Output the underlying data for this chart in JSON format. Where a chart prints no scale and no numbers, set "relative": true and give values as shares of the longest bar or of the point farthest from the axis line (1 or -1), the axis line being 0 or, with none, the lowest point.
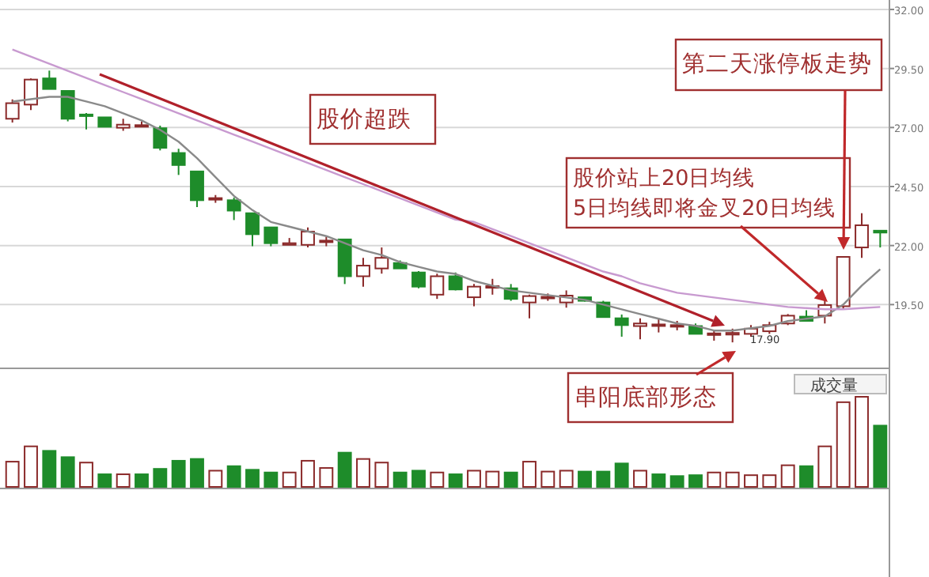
{
  "chart_data": [
    {
      "type": "candlestick",
      "categories": [
        null,
        null,
        null,
        null,
        null,
        null,
        null,
        null,
        null,
        null,
        null,
        null,
        null,
        null,
        null,
        null,
        null,
        null,
        null,
        null,
        null,
        null,
        null,
        null,
        null,
        null,
        null,
        null,
        null,
        null,
        null,
        null,
        null,
        null,
        null,
        null,
        null,
        null,
        null,
        null,
        null,
        null,
        null,
        null,
        null,
        null,
        null,
        null
      ],
      "ohlc": [
        [
          27.37,
          28.19,
          27.21,
          28.03
        ],
        [
          27.97,
          29.08,
          27.74,
          29.03
        ],
        [
          29.08,
          29.41,
          28.63,
          28.63
        ],
        [
          28.55,
          28.55,
          27.26,
          27.37
        ],
        [
          27.55,
          27.61,
          26.92,
          27.5
        ],
        [
          27.43,
          27.43,
          27.03,
          27.03
        ],
        [
          26.99,
          27.37,
          26.86,
          27.12
        ],
        [
          27.08,
          27.26,
          27.03,
          27.1
        ],
        [
          26.97,
          27.08,
          26.03,
          26.14
        ],
        [
          25.92,
          26.1,
          24.99,
          25.41
        ],
        [
          25.14,
          25.14,
          23.63,
          23.92
        ],
        [
          23.97,
          24.14,
          23.81,
          24.01
        ],
        [
          23.92,
          24.03,
          23.08,
          23.48
        ],
        [
          23.37,
          23.37,
          21.97,
          22.48
        ],
        [
          22.77,
          22.77,
          21.97,
          22.1
        ],
        [
          22.03,
          22.32,
          22.03,
          22.1
        ],
        [
          22.03,
          22.77,
          21.92,
          22.59
        ],
        [
          22.17,
          22.37,
          21.97,
          22.21
        ],
        [
          22.26,
          22.26,
          20.37,
          20.7
        ],
        [
          20.7,
          21.48,
          20.26,
          21.15
        ],
        [
          21.03,
          21.92,
          20.81,
          21.48
        ],
        [
          21.26,
          21.37,
          21.03,
          21.03
        ],
        [
          20.86,
          20.92,
          20.19,
          20.26
        ],
        [
          19.92,
          20.81,
          19.74,
          20.7
        ],
        [
          20.7,
          20.86,
          20.1,
          20.14
        ],
        [
          19.81,
          20.37,
          19.43,
          20.26
        ],
        [
          20.23,
          20.59,
          19.92,
          20.28
        ],
        [
          20.19,
          20.37,
          19.66,
          19.74
        ],
        [
          19.59,
          19.92,
          18.92,
          19.86
        ],
        [
          19.79,
          19.97,
          19.66,
          19.83
        ],
        [
          19.59,
          20.1,
          19.37,
          19.88
        ],
        [
          19.81,
          19.83,
          19.63,
          19.66
        ],
        [
          19.59,
          19.66,
          18.97,
          18.97
        ],
        [
          18.92,
          19.08,
          18.14,
          18.63
        ],
        [
          18.59,
          18.92,
          18.03,
          18.7
        ],
        [
          18.61,
          18.92,
          18.32,
          18.66
        ],
        [
          18.59,
          18.81,
          18.41,
          18.63
        ],
        [
          18.59,
          18.7,
          18.26,
          18.26
        ],
        [
          18.23,
          18.41,
          17.97,
          18.28
        ],
        [
          18.23,
          18.48,
          17.9,
          18.3
        ],
        [
          18.26,
          18.63,
          18.14,
          18.48
        ],
        [
          18.37,
          18.77,
          18.26,
          18.63
        ],
        [
          18.7,
          19.1,
          18.63,
          19.03
        ],
        [
          18.99,
          19.26,
          18.81,
          18.81
        ],
        [
          19.03,
          19.81,
          18.7,
          19.48
        ],
        [
          19.43,
          21.52,
          19.3,
          21.52
        ],
        [
          21.92,
          23.37,
          21.48,
          22.86
        ],
        [
          22.63,
          22.63,
          21.92,
          22.55
        ]
      ],
      "colors": [
        "#8b2a2a",
        "#8b2a2a",
        "#1e8c2a",
        "#1e8c2a",
        "#1e8c2a",
        "#1e8c2a",
        "#8b2a2a",
        "#8b2a2a",
        "#1e8c2a",
        "#1e8c2a",
        "#1e8c2a",
        "#8b2a2a",
        "#1e8c2a",
        "#1e8c2a",
        "#1e8c2a",
        "#8b2a2a",
        "#8b2a2a",
        "#8b2a2a",
        "#1e8c2a",
        "#8b2a2a",
        "#8b2a2a",
        "#1e8c2a",
        "#1e8c2a",
        "#8b2a2a",
        "#1e8c2a",
        "#8b2a2a",
        "#8b2a2a",
        "#1e8c2a",
        "#8b2a2a",
        "#8b2a2a",
        "#8b2a2a",
        "#1e8c2a",
        "#1e8c2a",
        "#1e8c2a",
        "#8b2a2a",
        "#8b2a2a",
        "#8b2a2a",
        "#1e8c2a",
        "#8b2a2a",
        "#8b2a2a",
        "#8b2a2a",
        "#8b2a2a",
        "#8b2a2a",
        "#1e8c2a",
        "#8b2a2a",
        "#8b2a2a",
        "#8b2a2a",
        "#1e8c2a"
      ],
      "series": [
        {
          "type": "line",
          "color": "#8a8a8a",
          "values": [
            28.1,
            28.2,
            28.3,
            28.3,
            28.1,
            27.9,
            27.6,
            27.3,
            26.9,
            26.4,
            25.7,
            24.9,
            24.1,
            23.5,
            23.0,
            22.8,
            22.6,
            22.4,
            22.1,
            21.8,
            21.6,
            21.3,
            21.1,
            20.9,
            20.8,
            20.5,
            20.3,
            20.1,
            20.0,
            19.9,
            19.8,
            19.7,
            19.5,
            19.3,
            19.1,
            18.9,
            18.7,
            18.6,
            18.4,
            18.4,
            18.5,
            18.6,
            18.8,
            18.9,
            19.0,
            19.5,
            20.3,
            21.0
          ]
        },
        {
          "type": "line",
          "color": "#c89ad0",
          "values": [
            30.3,
            30.0,
            29.7,
            29.4,
            29.1,
            28.8,
            28.5,
            28.2,
            27.9,
            27.6,
            27.3,
            27.0,
            26.7,
            26.4,
            26.1,
            25.8,
            25.5,
            25.2,
            24.9,
            24.6,
            24.3,
            24.0,
            23.7,
            23.4,
            23.1,
            23.0,
            22.7,
            22.4,
            22.1,
            21.8,
            21.5,
            21.2,
            20.9,
            20.7,
            20.4,
            20.2,
            20.0,
            19.9,
            19.8,
            19.7,
            19.6,
            19.5,
            19.4,
            19.35,
            19.3,
            19.3,
            19.35,
            19.4
          ]
        }
      ],
      "ylim": [
        16.8,
        32.4
      ],
      "yticks": [
        {
          "value": 19.5,
          "label": "19.50"
        },
        {
          "value": 22,
          "label": "22.00"
        },
        {
          "value": 24.5,
          "label": "24.50"
        },
        {
          "value": 27,
          "label": "27.00"
        },
        {
          "value": 29.5,
          "label": "29.50"
        },
        {
          "value": 32,
          "label": "32.00"
        }
      ],
      "grid": "y",
      "tick_labels": "y",
      "annotations": [
        "股价超跌",
        "第二天涨停板走势",
        "股价站上20日均线\n5日均线即将金叉20日均线",
        "串阳底部形态",
        "17.90"
      ]
    },
    {
      "type": "bar",
      "relative": true,
      "categories": [
        null,
        null,
        null,
        null,
        null,
        null,
        null,
        null,
        null,
        null,
        null,
        null,
        null,
        null,
        null,
        null,
        null,
        null,
        null,
        null,
        null,
        null,
        null,
        null,
        null,
        null,
        null,
        null,
        null,
        null,
        null,
        null,
        null,
        null,
        null,
        null,
        null,
        null,
        null,
        null,
        null,
        null,
        null,
        null,
        null,
        null,
        null,
        null
      ],
      "values": [
        0.28,
        0.45,
        0.4,
        0.33,
        0.27,
        0.14,
        0.14,
        0.14,
        0.2,
        0.29,
        0.31,
        0.18,
        0.23,
        0.19,
        0.16,
        0.16,
        0.29,
        0.21,
        0.38,
        0.31,
        0.27,
        0.16,
        0.18,
        0.16,
        0.14,
        0.18,
        0.17,
        0.16,
        0.28,
        0.17,
        0.18,
        0.17,
        0.17,
        0.26,
        0.18,
        0.14,
        0.12,
        0.13,
        0.16,
        0.16,
        0.13,
        0.13,
        0.24,
        0.23,
        0.45,
        0.94,
        1,
        0.68
      ],
      "colors": [
        "#8b2a2a",
        "#8b2a2a",
        "#1e8c2a",
        "#1e8c2a",
        "#8b2a2a",
        "#1e8c2a",
        "#8b2a2a",
        "#1e8c2a",
        "#1e8c2a",
        "#1e8c2a",
        "#1e8c2a",
        "#8b2a2a",
        "#1e8c2a",
        "#1e8c2a",
        "#1e8c2a",
        "#8b2a2a",
        "#8b2a2a",
        "#8b2a2a",
        "#1e8c2a",
        "#8b2a2a",
        "#8b2a2a",
        "#1e8c2a",
        "#1e8c2a",
        "#8b2a2a",
        "#1e8c2a",
        "#8b2a2a",
        "#8b2a2a",
        "#1e8c2a",
        "#8b2a2a",
        "#8b2a2a",
        "#8b2a2a",
        "#1e8c2a",
        "#1e8c2a",
        "#1e8c2a",
        "#8b2a2a",
        "#1e8c2a",
        "#1e8c2a",
        "#1e8c2a",
        "#8b2a2a",
        "#8b2a2a",
        "#8b2a2a",
        "#8b2a2a",
        "#8b2a2a",
        "#1e8c2a",
        "#8b2a2a",
        "#8b2a2a",
        "#8b2a2a",
        "#1e8c2a"
      ],
      "annotations": [
        "成交量"
      ]
    }
  ]
}
